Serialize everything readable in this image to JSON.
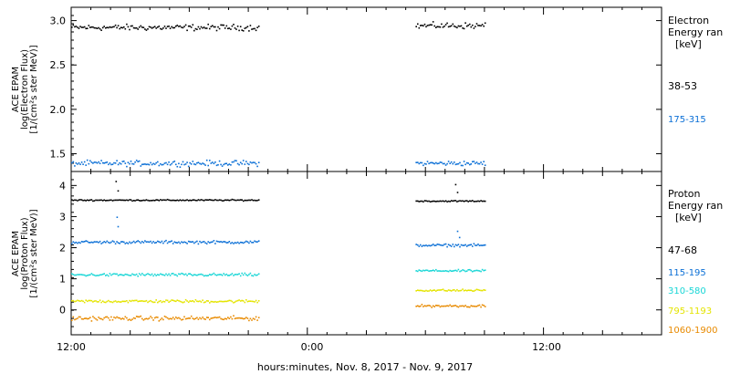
{
  "colors": {
    "black": "#000000",
    "blue": "#0a6fd6",
    "cyan": "#18d6d6",
    "yellow": "#e4e400",
    "orange": "#e88a00"
  },
  "x_axis": {
    "ticks": [
      "12:00",
      "0:00",
      "12:00"
    ],
    "title": "hours:minutes, Nov. 8, 2017 - Nov. 9, 2017"
  },
  "chart_data": [
    {
      "type": "scatter",
      "panel": "electron",
      "ylabel_lines": [
        "ACE EPAM",
        "log(Electron Flux)",
        "[1/(cm²s ster MeV)]"
      ],
      "yticks": [
        "3.0",
        "2.5",
        "2.0",
        "1.5"
      ],
      "ylim": [
        1.3,
        3.15
      ],
      "xlim_hours": [
        0,
        30
      ],
      "legend_title_lines": [
        "Electron",
        "Energy ran",
        "[keV]"
      ],
      "series": [
        {
          "name": "38-53",
          "color": "#000000",
          "segments": [
            {
              "x": [
                0,
                9.5
              ],
              "y": 2.93,
              "spread": 0.05
            },
            {
              "x": [
                17.5,
                21.0
              ],
              "y": 2.95,
              "spread": 0.05
            }
          ]
        },
        {
          "name": "175-315",
          "color": "#0a6fd6",
          "segments": [
            {
              "x": [
                0,
                9.5
              ],
              "y": 1.4,
              "spread": 0.045
            },
            {
              "x": [
                17.5,
                21.0
              ],
              "y": 1.4,
              "spread": 0.04
            }
          ]
        }
      ]
    },
    {
      "type": "scatter",
      "panel": "proton",
      "ylabel_lines": [
        "ACE EPAM",
        "log(Proton Flux)",
        "[1/(cm²s ster MeV)]"
      ],
      "yticks": [
        "4",
        "3",
        "2",
        "1",
        "0"
      ],
      "ylim": [
        -0.8,
        4.45
      ],
      "xlim_hours": [
        0,
        30
      ],
      "legend_title_lines": [
        "Proton",
        "Energy ran",
        "[keV]"
      ],
      "series": [
        {
          "name": "47-68",
          "color": "#000000",
          "segments": [
            {
              "x": [
                0,
                9.5
              ],
              "y": 3.55,
              "spread": 0.03
            },
            {
              "x": [
                17.5,
                21.0
              ],
              "y": 3.52,
              "spread": 0.03
            }
          ],
          "spikes": [
            [
              2.25,
              4.15
            ],
            [
              2.35,
              3.85
            ],
            [
              19.5,
              4.05
            ],
            [
              19.6,
              3.8
            ]
          ]
        },
        {
          "name": "115-195",
          "color": "#0a6fd6",
          "segments": [
            {
              "x": [
                0,
                9.5
              ],
              "y": 2.2,
              "spread": 0.07
            },
            {
              "x": [
                17.5,
                21.0
              ],
              "y": 2.1,
              "spread": 0.06
            }
          ],
          "spikes": [
            [
              2.3,
              3.0
            ],
            [
              2.35,
              2.7
            ],
            [
              19.6,
              2.55
            ],
            [
              19.7,
              2.35
            ]
          ]
        },
        {
          "name": "310-580",
          "color": "#18d6d6",
          "segments": [
            {
              "x": [
                0,
                9.5
              ],
              "y": 1.15,
              "spread": 0.07
            },
            {
              "x": [
                17.5,
                21.0
              ],
              "y": 1.28,
              "spread": 0.05
            }
          ]
        },
        {
          "name": "795-1193",
          "color": "#e4e400",
          "segments": [
            {
              "x": [
                0,
                9.5
              ],
              "y": 0.3,
              "spread": 0.07
            },
            {
              "x": [
                17.5,
                21.0
              ],
              "y": 0.65,
              "spread": 0.05
            }
          ]
        },
        {
          "name": "1060-1900",
          "color": "#e88a00",
          "segments": [
            {
              "x": [
                0,
                9.5
              ],
              "y": -0.25,
              "spread": 0.1
            },
            {
              "x": [
                17.5,
                21.0
              ],
              "y": 0.15,
              "spread": 0.06
            }
          ]
        }
      ]
    }
  ]
}
